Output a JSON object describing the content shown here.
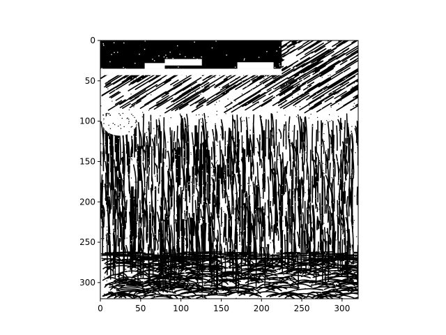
{
  "chart_data": {
    "type": "heatmap",
    "description_kind": "binary image (imshow, gray colormap)",
    "title": "",
    "xlabel": "",
    "ylabel": "",
    "xlim": [
      0,
      320
    ],
    "ylim": [
      320,
      0
    ],
    "image_shape": [
      320,
      320
    ],
    "colormap": [
      "#000000",
      "#ffffff"
    ],
    "grid": false,
    "x_ticks": [
      {
        "value": 0,
        "label": "0"
      },
      {
        "value": 50,
        "label": "50"
      },
      {
        "value": 100,
        "label": "100"
      },
      {
        "value": 150,
        "label": "150"
      },
      {
        "value": 200,
        "label": "200"
      },
      {
        "value": 250,
        "label": "250"
      },
      {
        "value": 300,
        "label": "300"
      }
    ],
    "y_ticks": [
      {
        "value": 0,
        "label": "0"
      },
      {
        "value": 50,
        "label": "50"
      },
      {
        "value": 100,
        "label": "100"
      },
      {
        "value": 150,
        "label": "150"
      },
      {
        "value": 200,
        "label": "200"
      },
      {
        "value": 250,
        "label": "250"
      },
      {
        "value": 300,
        "label": "300"
      }
    ],
    "regions": [
      {
        "kind": "solid-black-block",
        "x": [
          0,
          225
        ],
        "y": [
          0,
          35
        ]
      },
      {
        "kind": "white-band",
        "x": [
          0,
          225
        ],
        "y": [
          35,
          43
        ]
      },
      {
        "kind": "white-blob",
        "x": [
          3,
          45
        ],
        "y": [
          88,
          118
        ]
      },
      {
        "kind": "diagonal-strokes",
        "x": [
          0,
          320
        ],
        "y": [
          0,
          90
        ]
      },
      {
        "kind": "vertical-strokes",
        "x": [
          0,
          320
        ],
        "y": [
          90,
          265
        ]
      },
      {
        "kind": "horizontal-band",
        "x": [
          0,
          320
        ],
        "y": [
          262,
          272
        ]
      },
      {
        "kind": "wavy-strokes",
        "x": [
          0,
          320
        ],
        "y": [
          272,
          320
        ]
      }
    ]
  }
}
